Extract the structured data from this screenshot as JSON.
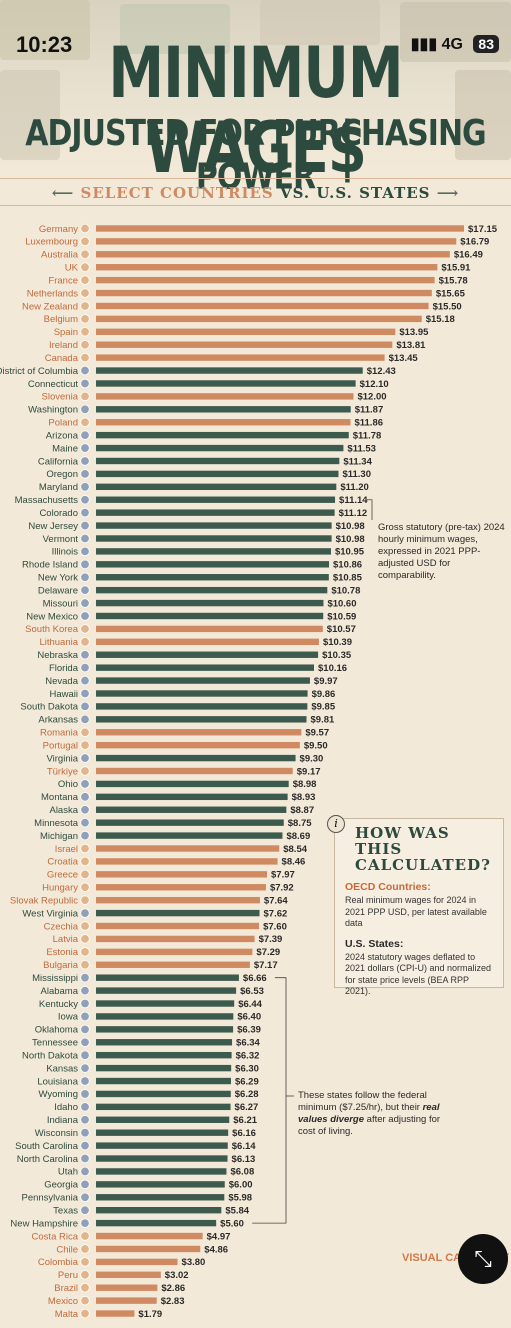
{
  "status_bar": {
    "time": "10:23",
    "network": "4G",
    "battery": "83"
  },
  "header": {
    "title": "MINIMUM WAGE$",
    "subtitle": "ADJUSTED FOR PURCHASING POWER",
    "band": {
      "part1": "SELECT COUNTRIES",
      "part2": "VS.",
      "part3": "U.S. STATES"
    }
  },
  "colors": {
    "country_bar": "#d08a62",
    "state_bar": "#3d5a4e",
    "title": "#2d4a3e",
    "background": "#f3e9d8"
  },
  "annotations": {
    "gross_note": "Gross statutory (pre-tax) 2024 hourly minimum wages, expressed in 2021 PPP-adjusted USD for comparability.",
    "federal_note_1": "These states follow the federal minimum",
    "federal_note_2": "($7.25/hr), but their",
    "federal_note_emph": "real values diverge",
    "federal_note_3": "after adjusting for cost of living."
  },
  "how_box": {
    "title": "HOW WAS THIS CALCULATED?",
    "oecd_head": "OECD Countries:",
    "oecd_text": "Real minimum wages for 2024 in 2021 PPP USD, per latest available data",
    "us_head": "U.S. States:",
    "us_text": "2024 statutory wages deflated to 2021 dollars (CPI-U) and normalized for state price levels (BEA RPP 2021)."
  },
  "brand": "VISUAL CAPITALIST",
  "chart_data": {
    "type": "bar",
    "orientation": "horizontal",
    "value_prefix": "$",
    "xlim": [
      0,
      17.15
    ],
    "rows": [
      {
        "label": "Germany",
        "value": 17.15,
        "kind": "country"
      },
      {
        "label": "Luxembourg",
        "value": 16.79,
        "kind": "country"
      },
      {
        "label": "Australia",
        "value": 16.49,
        "kind": "country"
      },
      {
        "label": "UK",
        "value": 15.91,
        "kind": "country"
      },
      {
        "label": "France",
        "value": 15.78,
        "kind": "country"
      },
      {
        "label": "Netherlands",
        "value": 15.65,
        "kind": "country"
      },
      {
        "label": "New Zealand",
        "value": 15.5,
        "kind": "country"
      },
      {
        "label": "Belgium",
        "value": 15.18,
        "kind": "country"
      },
      {
        "label": "Spain",
        "value": 13.95,
        "kind": "country"
      },
      {
        "label": "Ireland",
        "value": 13.81,
        "kind": "country"
      },
      {
        "label": "Canada",
        "value": 13.45,
        "kind": "country"
      },
      {
        "label": "District of Columbia",
        "value": 12.43,
        "kind": "state"
      },
      {
        "label": "Connecticut",
        "value": 12.1,
        "kind": "state"
      },
      {
        "label": "Slovenia",
        "value": 12.0,
        "kind": "country"
      },
      {
        "label": "Washington",
        "value": 11.87,
        "kind": "state"
      },
      {
        "label": "Poland",
        "value": 11.86,
        "kind": "country"
      },
      {
        "label": "Arizona",
        "value": 11.78,
        "kind": "state"
      },
      {
        "label": "Maine",
        "value": 11.53,
        "kind": "state"
      },
      {
        "label": "California",
        "value": 11.34,
        "kind": "state"
      },
      {
        "label": "Oregon",
        "value": 11.3,
        "kind": "state"
      },
      {
        "label": "Maryland",
        "value": 11.2,
        "kind": "state"
      },
      {
        "label": "Massachusetts",
        "value": 11.14,
        "kind": "state"
      },
      {
        "label": "Colorado",
        "value": 11.12,
        "kind": "state"
      },
      {
        "label": "New Jersey",
        "value": 10.98,
        "kind": "state"
      },
      {
        "label": "Vermont",
        "value": 10.98,
        "kind": "state"
      },
      {
        "label": "Illinois",
        "value": 10.95,
        "kind": "state"
      },
      {
        "label": "Rhode Island",
        "value": 10.86,
        "kind": "state"
      },
      {
        "label": "New York",
        "value": 10.85,
        "kind": "state"
      },
      {
        "label": "Delaware",
        "value": 10.78,
        "kind": "state"
      },
      {
        "label": "Missouri",
        "value": 10.6,
        "kind": "state"
      },
      {
        "label": "New Mexico",
        "value": 10.59,
        "kind": "state"
      },
      {
        "label": "South Korea",
        "value": 10.57,
        "kind": "country"
      },
      {
        "label": "Lithuania",
        "value": 10.39,
        "kind": "country"
      },
      {
        "label": "Nebraska",
        "value": 10.35,
        "kind": "state"
      },
      {
        "label": "Florida",
        "value": 10.16,
        "kind": "state"
      },
      {
        "label": "Nevada",
        "value": 9.97,
        "kind": "state"
      },
      {
        "label": "Hawaii",
        "value": 9.86,
        "kind": "state"
      },
      {
        "label": "South Dakota",
        "value": 9.85,
        "kind": "state"
      },
      {
        "label": "Arkansas",
        "value": 9.81,
        "kind": "state"
      },
      {
        "label": "Romania",
        "value": 9.57,
        "kind": "country"
      },
      {
        "label": "Portugal",
        "value": 9.5,
        "kind": "country"
      },
      {
        "label": "Virginia",
        "value": 9.3,
        "kind": "state"
      },
      {
        "label": "Türkiye",
        "value": 9.17,
        "kind": "country"
      },
      {
        "label": "Ohio",
        "value": 8.98,
        "kind": "state"
      },
      {
        "label": "Montana",
        "value": 8.93,
        "kind": "state"
      },
      {
        "label": "Alaska",
        "value": 8.87,
        "kind": "state"
      },
      {
        "label": "Minnesota",
        "value": 8.75,
        "kind": "state"
      },
      {
        "label": "Michigan",
        "value": 8.69,
        "kind": "state"
      },
      {
        "label": "Israel",
        "value": 8.54,
        "kind": "country"
      },
      {
        "label": "Croatia",
        "value": 8.46,
        "kind": "country"
      },
      {
        "label": "Greece",
        "value": 7.97,
        "kind": "country"
      },
      {
        "label": "Hungary",
        "value": 7.92,
        "kind": "country"
      },
      {
        "label": "Slovak Republic",
        "value": 7.64,
        "kind": "country"
      },
      {
        "label": "West Virginia",
        "value": 7.62,
        "kind": "state"
      },
      {
        "label": "Czechia",
        "value": 7.6,
        "kind": "country"
      },
      {
        "label": "Latvia",
        "value": 7.39,
        "kind": "country"
      },
      {
        "label": "Estonia",
        "value": 7.29,
        "kind": "country"
      },
      {
        "label": "Bulgaria",
        "value": 7.17,
        "kind": "country"
      },
      {
        "label": "Mississippi",
        "value": 6.66,
        "kind": "state"
      },
      {
        "label": "Alabama",
        "value": 6.53,
        "kind": "state"
      },
      {
        "label": "Kentucky",
        "value": 6.44,
        "kind": "state"
      },
      {
        "label": "Iowa",
        "value": 6.4,
        "kind": "state"
      },
      {
        "label": "Oklahoma",
        "value": 6.39,
        "kind": "state"
      },
      {
        "label": "Tennessee",
        "value": 6.34,
        "kind": "state"
      },
      {
        "label": "North Dakota",
        "value": 6.32,
        "kind": "state"
      },
      {
        "label": "Kansas",
        "value": 6.3,
        "kind": "state"
      },
      {
        "label": "Louisiana",
        "value": 6.29,
        "kind": "state"
      },
      {
        "label": "Wyoming",
        "value": 6.28,
        "kind": "state"
      },
      {
        "label": "Idaho",
        "value": 6.27,
        "kind": "state"
      },
      {
        "label": "Indiana",
        "value": 6.21,
        "kind": "state"
      },
      {
        "label": "Wisconsin",
        "value": 6.16,
        "kind": "state"
      },
      {
        "label": "South Carolina",
        "value": 6.14,
        "kind": "state"
      },
      {
        "label": "North Carolina",
        "value": 6.13,
        "kind": "state"
      },
      {
        "label": "Utah",
        "value": 6.08,
        "kind": "state"
      },
      {
        "label": "Georgia",
        "value": 6.0,
        "kind": "state"
      },
      {
        "label": "Pennsylvania",
        "value": 5.98,
        "kind": "state"
      },
      {
        "label": "Texas",
        "value": 5.84,
        "kind": "state"
      },
      {
        "label": "New Hampshire",
        "value": 5.6,
        "kind": "state"
      },
      {
        "label": "Costa Rica",
        "value": 4.97,
        "kind": "country"
      },
      {
        "label": "Chile",
        "value": 4.86,
        "kind": "country"
      },
      {
        "label": "Colombia",
        "value": 3.8,
        "kind": "country"
      },
      {
        "label": "Peru",
        "value": 3.02,
        "kind": "country"
      },
      {
        "label": "Brazil",
        "value": 2.86,
        "kind": "country"
      },
      {
        "label": "Mexico",
        "value": 2.83,
        "kind": "country"
      },
      {
        "label": "Malta",
        "value": 1.79,
        "kind": "country"
      }
    ]
  }
}
